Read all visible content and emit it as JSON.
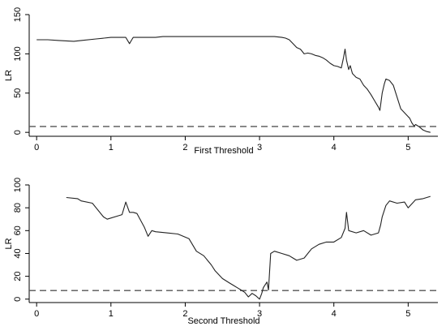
{
  "chart_data": [
    {
      "type": "line",
      "xlabel": "First Threshold",
      "ylabel": "LR",
      "xlim": [
        -0.1,
        5.4
      ],
      "ylim": [
        -5,
        150
      ],
      "xticks": [
        0,
        1,
        2,
        3,
        4,
        5
      ],
      "yticks": [
        0,
        50,
        100,
        150
      ],
      "critical_value": 7.5,
      "grid": false,
      "series": [
        {
          "x": [
            0,
            0.15,
            0.3,
            0.5,
            0.6,
            0.8,
            1.0,
            1.2,
            1.25,
            1.28,
            1.3,
            1.4,
            1.6,
            1.7,
            2.0,
            2.2,
            2.5,
            2.8,
            3.0,
            3.1,
            3.2,
            3.3,
            3.35,
            3.4,
            3.45,
            3.5,
            3.55,
            3.6,
            3.65,
            3.7,
            3.75,
            3.8,
            3.85,
            3.9,
            3.95,
            4.0,
            4.05,
            4.1,
            4.13,
            4.15,
            4.17,
            4.2,
            4.22,
            4.25,
            4.3,
            4.35,
            4.4,
            4.45,
            4.5,
            4.55,
            4.6,
            4.62,
            4.65,
            4.68,
            4.7,
            4.75,
            4.8,
            4.85,
            4.9,
            4.95,
            5.0,
            5.02,
            5.05,
            5.08,
            5.1,
            5.15,
            5.2,
            5.25,
            5.3
          ],
          "y": [
            118,
            118,
            117,
            116,
            117,
            119,
            121,
            121,
            113,
            118,
            121,
            121,
            121,
            122,
            122,
            122,
            122,
            122,
            122,
            122,
            122,
            121,
            120,
            118,
            113,
            108,
            106,
            100,
            101,
            100,
            98,
            97,
            95,
            92,
            88,
            85,
            84,
            82,
            95,
            106,
            92,
            80,
            85,
            75,
            70,
            68,
            60,
            55,
            48,
            40,
            32,
            28,
            50,
            62,
            68,
            66,
            60,
            45,
            30,
            25,
            20,
            18,
            12,
            8,
            10,
            7,
            3,
            1,
            0
          ]
        }
      ]
    },
    {
      "type": "line",
      "xlabel": "Second Threshold",
      "ylabel": "LR",
      "xlim": [
        -0.1,
        5.4
      ],
      "ylim": [
        -3,
        100
      ],
      "xticks": [
        0,
        1,
        2,
        3,
        4,
        5
      ],
      "yticks": [
        0,
        20,
        40,
        60,
        80,
        100
      ],
      "critical_value": 7.5,
      "grid": false,
      "series": [
        {
          "x": [
            0.4,
            0.55,
            0.6,
            0.75,
            0.9,
            0.95,
            1.1,
            1.15,
            1.2,
            1.25,
            1.3,
            1.35,
            1.45,
            1.5,
            1.55,
            1.6,
            1.75,
            1.9,
            2.05,
            2.15,
            2.25,
            2.35,
            2.4,
            2.5,
            2.6,
            2.65,
            2.7,
            2.75,
            2.8,
            2.85,
            2.9,
            2.95,
            3.0,
            3.03,
            3.05,
            3.1,
            3.12,
            3.15,
            3.2,
            3.3,
            3.4,
            3.45,
            3.5,
            3.6,
            3.7,
            3.8,
            3.9,
            4.0,
            4.1,
            4.15,
            4.17,
            4.2,
            4.3,
            4.4,
            4.5,
            4.6,
            4.63,
            4.65,
            4.7,
            4.75,
            4.85,
            4.95,
            5.0,
            5.1,
            5.2,
            5.3
          ],
          "y": [
            89,
            88,
            86,
            84,
            72,
            70,
            73,
            74,
            85,
            76,
            76,
            75,
            63,
            55,
            60,
            59,
            58,
            57,
            53,
            42,
            38,
            30,
            25,
            18,
            14,
            12,
            10,
            8,
            6,
            2,
            5,
            3,
            0,
            5,
            10,
            15,
            8,
            40,
            42,
            40,
            38,
            36,
            34,
            36,
            44,
            48,
            50,
            50,
            54,
            62,
            76,
            60,
            58,
            60,
            56,
            58,
            65,
            72,
            82,
            86,
            84,
            85,
            80,
            87,
            88,
            90
          ]
        }
      ]
    }
  ]
}
